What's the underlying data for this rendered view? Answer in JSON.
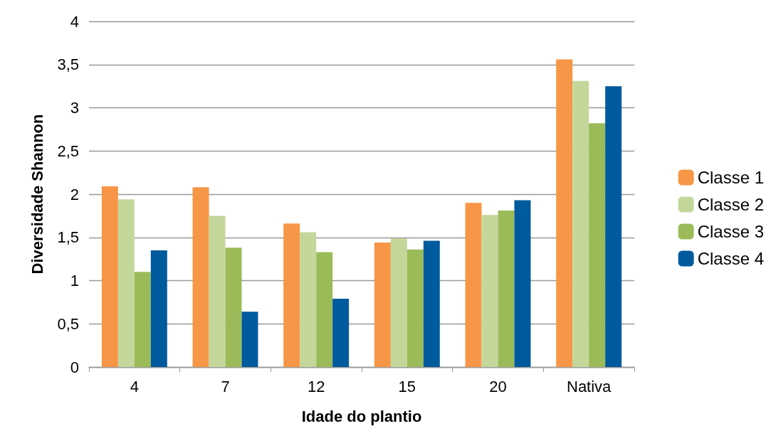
{
  "chart_data": {
    "type": "bar",
    "xlabel": "Idade do plantio",
    "ylabel": "Diversidade Shannon",
    "categories": [
      "4",
      "7",
      "12",
      "15",
      "20",
      "Nativa"
    ],
    "series": [
      {
        "name": "Classe 1",
        "color": "#f79646",
        "values": [
          2.09,
          2.08,
          1.66,
          1.44,
          1.9,
          3.56
        ]
      },
      {
        "name": "Classe 2",
        "color": "#c4d79b",
        "values": [
          1.94,
          1.75,
          1.56,
          1.49,
          1.76,
          3.31
        ]
      },
      {
        "name": "Classe 3",
        "color": "#9bbb59",
        "values": [
          1.1,
          1.38,
          1.33,
          1.36,
          1.81,
          2.82
        ]
      },
      {
        "name": "Classe 4",
        "color": "#005a9e",
        "values": [
          1.35,
          0.64,
          0.79,
          1.46,
          1.93,
          3.25
        ]
      }
    ],
    "ylim": [
      0,
      4
    ],
    "yticks": [
      0,
      {
        "value": 0.5,
        "label": "0,5"
      },
      1,
      {
        "value": 1.5,
        "label": "1,5"
      },
      2,
      {
        "value": 2.5,
        "label": "2,5"
      },
      3,
      {
        "value": 3.5,
        "label": "3,5"
      },
      4
    ],
    "grid": "y",
    "legend": "right"
  }
}
